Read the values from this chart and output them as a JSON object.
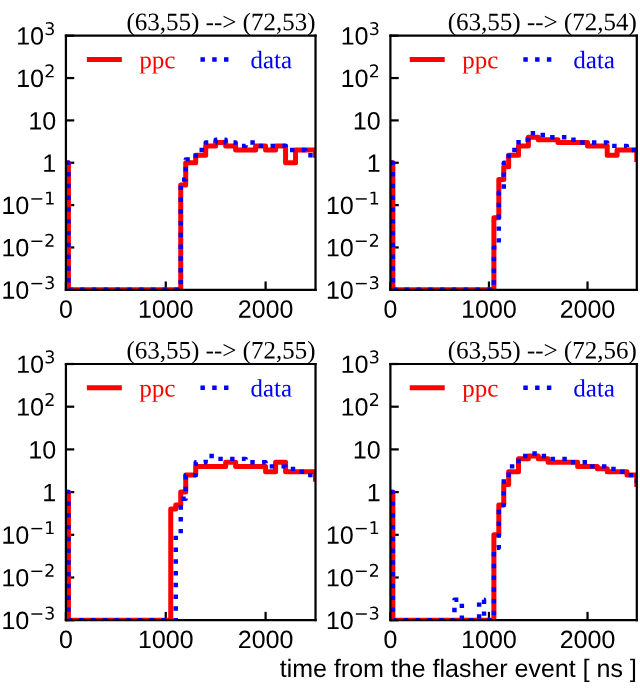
{
  "chart_data": [
    {
      "type": "step",
      "title": "(63,55) --> (72,53)",
      "log": "y",
      "legend": "top",
      "xlim": [
        0,
        2500
      ],
      "xticks": [
        0,
        1000,
        2000
      ],
      "ylim": [
        0.001,
        1000
      ],
      "yticks": [
        {
          "value": 0.001,
          "label": "10$^{−3}$"
        },
        {
          "value": 0.01,
          "label": "10$^{−2}$"
        },
        {
          "value": 0.1,
          "label": "10$^{−1}$"
        },
        1,
        10,
        {
          "value": 100,
          "label": "10$^{2}$"
        },
        {
          "value": 1000,
          "label": "10$^{3}$"
        }
      ],
      "x": [
        0,
        25,
        950,
        1000,
        1050,
        1100,
        1150,
        1200,
        1300,
        1400,
        1500,
        1600,
        1700,
        1800,
        1900,
        2000,
        2100,
        2200,
        2300,
        2400,
        2500
      ],
      "series": [
        {
          "name": "ppc",
          "color": "#ff0000",
          "line_style": "solid",
          "values": [
            1,
            0.001,
            0.001,
            0.001,
            0.001,
            0.001,
            0.3,
            1,
            1.5,
            2.5,
            3,
            2.5,
            2,
            2,
            2.5,
            2,
            2.5,
            1,
            2,
            2,
            1.5
          ]
        },
        {
          "name": "data",
          "color": "#0000ff",
          "line_style": "dotted",
          "values": [
            1,
            0.001,
            0.001,
            0.001,
            0.001,
            0.001,
            0.4,
            1.2,
            2,
            3,
            3.5,
            3,
            2.5,
            3,
            2.5,
            2.5,
            2.5,
            2,
            2,
            1.5,
            1.2
          ]
        }
      ]
    },
    {
      "type": "step",
      "title": "(63,55) --> (72,54)",
      "log": "y",
      "legend": "top",
      "xlim": [
        0,
        2500
      ],
      "xticks": [
        0,
        1000,
        2000
      ],
      "ylim": [
        0.001,
        1000
      ],
      "yticks": [
        {
          "value": 0.001,
          "label": "10$^{−3}$"
        },
        {
          "value": 0.01,
          "label": "10$^{−2}$"
        },
        {
          "value": 0.1,
          "label": "10$^{−1}$"
        },
        1,
        10,
        {
          "value": 100,
          "label": "10$^{2}$"
        },
        {
          "value": 1000,
          "label": "10$^{3}$"
        }
      ],
      "x": [
        0,
        25,
        950,
        1000,
        1050,
        1100,
        1150,
        1200,
        1300,
        1400,
        1500,
        1600,
        1700,
        1800,
        1900,
        2000,
        2100,
        2200,
        2300,
        2400,
        2500
      ],
      "series": [
        {
          "name": "ppc",
          "color": "#ff0000",
          "line_style": "solid",
          "values": [
            1,
            0.001,
            0.001,
            0.001,
            0.05,
            0.4,
            0.8,
            1.5,
            2.5,
            4,
            3.5,
            3.5,
            3,
            3,
            3,
            2.5,
            2.5,
            1.5,
            2,
            2,
            1.2
          ]
        },
        {
          "name": "data",
          "color": "#0000ff",
          "line_style": "dotted",
          "values": [
            1,
            0.001,
            0.001,
            0.001,
            0.01,
            0.2,
            1,
            2,
            3.5,
            5,
            4.5,
            4,
            4,
            3.5,
            3,
            3,
            3,
            2.5,
            2.5,
            2,
            1.5
          ]
        }
      ]
    },
    {
      "type": "step",
      "title": "(63,55) --> (72,55)",
      "log": "y",
      "legend": "top",
      "xlim": [
        0,
        2500
      ],
      "xticks": [
        0,
        1000,
        2000
      ],
      "ylim": [
        0.001,
        1000
      ],
      "yticks": [
        {
          "value": 0.001,
          "label": "10$^{−3}$"
        },
        {
          "value": 0.01,
          "label": "10$^{−2}$"
        },
        {
          "value": 0.1,
          "label": "10$^{−1}$"
        },
        1,
        10,
        {
          "value": 100,
          "label": "10$^{2}$"
        },
        {
          "value": 1000,
          "label": "10$^{3}$"
        }
      ],
      "x": [
        0,
        25,
        950,
        1000,
        1050,
        1100,
        1150,
        1200,
        1300,
        1400,
        1500,
        1600,
        1700,
        1800,
        1900,
        2000,
        2100,
        2200,
        2300,
        2400,
        2500
      ],
      "series": [
        {
          "name": "ppc",
          "color": "#ff0000",
          "line_style": "solid",
          "values": [
            1,
            0.001,
            0.001,
            0.001,
            0.4,
            0.5,
            1,
            2.5,
            4,
            4,
            4,
            5,
            4,
            4,
            4,
            3,
            5,
            3,
            3,
            3,
            2
          ]
        },
        {
          "name": "data",
          "color": "#0000ff",
          "line_style": "dotted",
          "values": [
            1,
            0.001,
            0.001,
            0.001,
            0.001,
            0.1,
            0.7,
            2.5,
            5,
            7,
            6,
            6,
            6,
            5,
            5,
            4,
            4,
            3.5,
            3,
            2.5,
            2
          ]
        }
      ]
    },
    {
      "type": "step",
      "title": "(63,55) --> (72,56)",
      "xlabel": "time from the flasher event [ ns ]",
      "log": "y",
      "legend": "top",
      "xlim": [
        0,
        2500
      ],
      "xticks": [
        0,
        1000,
        2000
      ],
      "ylim": [
        0.001,
        1000
      ],
      "yticks": [
        {
          "value": 0.001,
          "label": "10$^{−3}$"
        },
        {
          "value": 0.01,
          "label": "10$^{−2}$"
        },
        {
          "value": 0.1,
          "label": "10$^{−1}$"
        },
        1,
        10,
        {
          "value": 100,
          "label": "10$^{2}$"
        },
        {
          "value": 1000,
          "label": "10$^{3}$"
        }
      ],
      "x": [
        0,
        25,
        650,
        725,
        900,
        950,
        1000,
        1050,
        1100,
        1150,
        1200,
        1300,
        1400,
        1500,
        1600,
        1700,
        1800,
        1900,
        2000,
        2100,
        2200,
        2300,
        2400,
        2500
      ],
      "series": [
        {
          "name": "ppc",
          "color": "#ff0000",
          "line_style": "solid",
          "values": [
            1,
            0.001,
            0.001,
            0.001,
            0.001,
            0.001,
            0.001,
            0.1,
            0.5,
            1.5,
            3,
            6,
            7,
            6,
            5,
            5,
            5,
            4,
            4,
            3.5,
            3,
            3,
            2.5,
            1.5
          ]
        },
        {
          "name": "data",
          "color": "#0000ff",
          "line_style": "dotted",
          "values": [
            1,
            0.001,
            0.003,
            0.001,
            0.003,
            0.001,
            0.001,
            0.05,
            0.5,
            2,
            4,
            7,
            8,
            7,
            6,
            6,
            5,
            5,
            4,
            4,
            3.5,
            3,
            2.5,
            1.5
          ]
        }
      ]
    }
  ]
}
